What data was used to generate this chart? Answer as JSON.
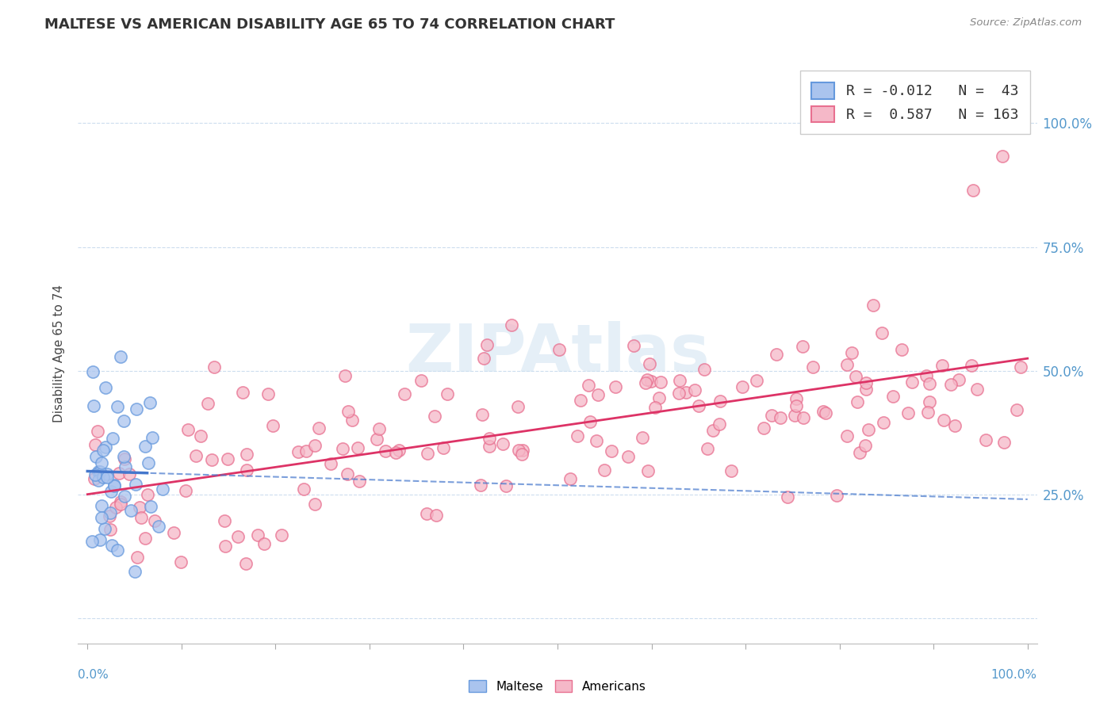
{
  "title": "MALTESE VS AMERICAN DISABILITY AGE 65 TO 74 CORRELATION CHART",
  "source_text": "Source: ZipAtlas.com",
  "ylabel": "Disability Age 65 to 74",
  "maltese_color": "#6699dd",
  "maltese_face_color": "#aac4ee",
  "american_color": "#e87090",
  "american_face_color": "#f5b8c8",
  "maltese_R": -0.012,
  "maltese_N": 43,
  "american_R": 0.587,
  "american_N": 163,
  "background_color": "#ffffff",
  "title_fontsize": 13,
  "axis_label_fontsize": 11,
  "watermark_color": "#cce0f0",
  "watermark_alpha": 0.5,
  "grid_color": "#ccddee",
  "trend_blue_color": "#4477cc",
  "trend_pink_color": "#dd3366",
  "right_tick_color": "#5599cc",
  "bottom_tick_color": "#5599cc"
}
